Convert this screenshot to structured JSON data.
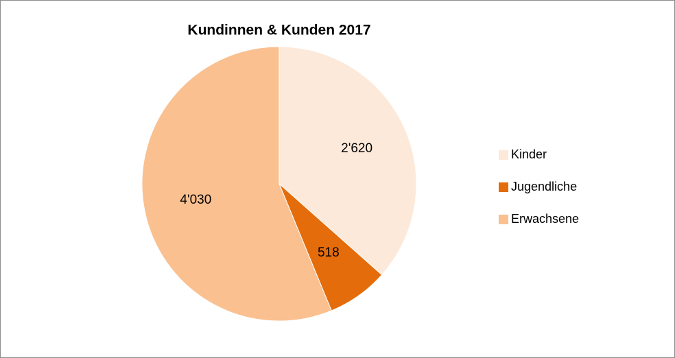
{
  "chart_data": {
    "type": "pie",
    "title": "Kundinnen & Kunden 2017",
    "categories": [
      "Kinder",
      "Jugendliche",
      "Erwachsene"
    ],
    "values": [
      2620,
      518,
      4030
    ],
    "value_labels": [
      "2'620",
      "518",
      "4'030"
    ],
    "colors": [
      "#fde9d9",
      "#e46c0a",
      "#fac090"
    ],
    "legend": "right"
  }
}
